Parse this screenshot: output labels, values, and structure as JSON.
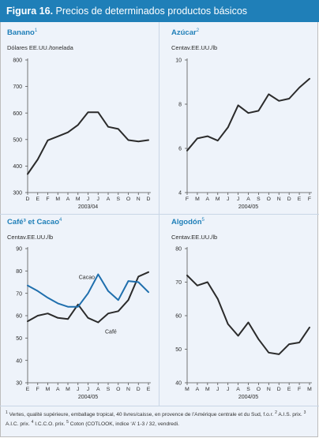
{
  "figure": {
    "label": "Figura 16.",
    "title": "Precios de determinados productos básicos"
  },
  "colors": {
    "header": "#1f7fb8",
    "primary_line": "#2b2b2b",
    "secondary_line": "#1f6fad",
    "panel_bg": "#eef3fa"
  },
  "panels": [
    {
      "title": "Banano",
      "sup": "1",
      "unit": "Dólares EE.UU./tonelada",
      "xlabel": "2003/04"
    },
    {
      "title": "Azúcar",
      "sup": "2",
      "unit": "Centav.EE.UU./lb",
      "xlabel": "2004/05"
    },
    {
      "title": "Café³ et Cacao",
      "sup": "4",
      "unit": "Centav.EE.UU./lb",
      "xlabel": "2004/05"
    },
    {
      "title": "Algodón",
      "sup": "5",
      "unit": "Centav.EE.UU./lb",
      "xlabel": "2004/05"
    }
  ],
  "chart_data": [
    {
      "type": "line",
      "title": "Banano",
      "ylabel": "Dólares EE.UU./tonelada",
      "xlabel": "2003/04",
      "categories": [
        "D",
        "E",
        "F",
        "M",
        "A",
        "M",
        "J",
        "J",
        "A",
        "S",
        "O",
        "N",
        "D"
      ],
      "ylim": [
        300,
        800
      ],
      "yticks": [
        300,
        400,
        500,
        600,
        700,
        800
      ],
      "series": [
        {
          "values": [
            370,
            425,
            497,
            512,
            527,
            555,
            603,
            603,
            548,
            540,
            498,
            493,
            498
          ]
        }
      ]
    },
    {
      "type": "line",
      "title": "Azúcar",
      "ylabel": "Centav.EE.UU./lb",
      "xlabel": "2004/05",
      "categories": [
        "F",
        "M",
        "A",
        "M",
        "J",
        "J",
        "A",
        "S",
        "O",
        "N",
        "D",
        "E",
        "F"
      ],
      "ylim": [
        4,
        10
      ],
      "yticks": [
        4,
        6,
        8,
        10
      ],
      "series": [
        {
          "values": [
            5.9,
            6.45,
            6.55,
            6.35,
            6.95,
            7.95,
            7.6,
            7.7,
            8.45,
            8.15,
            8.25,
            8.75,
            9.15
          ]
        }
      ]
    },
    {
      "type": "line",
      "title": "Café³ et Cacao",
      "ylabel": "Centav.EE.UU./lb",
      "xlabel": "2004/05",
      "categories": [
        "E",
        "F",
        "M",
        "A",
        "M",
        "J",
        "J",
        "A",
        "S",
        "O",
        "N",
        "D",
        "E"
      ],
      "ylim": [
        30,
        90
      ],
      "yticks": [
        30,
        40,
        50,
        60,
        70,
        80,
        90
      ],
      "series": [
        {
          "name": "Café",
          "values": [
            57.5,
            60,
            61,
            59,
            58.5,
            65,
            59,
            57,
            61,
            62,
            67,
            77.5,
            79.5
          ]
        },
        {
          "name": "Cacao",
          "values": [
            73.5,
            71,
            68,
            65.5,
            64,
            64,
            70,
            78.5,
            71,
            67,
            75.5,
            75,
            70.5
          ]
        }
      ]
    },
    {
      "type": "line",
      "title": "Algodón",
      "ylabel": "Centav.EE.UU./lb",
      "xlabel": "2004/05",
      "categories": [
        "M",
        "A",
        "M",
        "J",
        "J",
        "A",
        "S",
        "O",
        "N",
        "D",
        "E",
        "F",
        "M"
      ],
      "ylim": [
        40,
        80
      ],
      "yticks": [
        40,
        50,
        60,
        70,
        80
      ],
      "series": [
        {
          "values": [
            72,
            69,
            70,
            65,
            57.5,
            54,
            58,
            53,
            49,
            48.5,
            51.5,
            52,
            56.5
          ]
        }
      ]
    }
  ],
  "footnote": {
    "n1": "1",
    "t1": " Vertes, qualité supérieure, emballage tropical, 40 livres/caisse, en provence de l’Amérique centrale et du Sud, f.o.r.  ",
    "n2": "2",
    "t2": " A.I.S. prix.  ",
    "n3": "3",
    "t3": " A.I.C. prix.  ",
    "n4": "4",
    "t4": " I.C.C.O. prix.  ",
    "n5": "5",
    "t5": " Coton (COTLOOK, indice ‘A’ 1-3 / 32, vendredi."
  }
}
